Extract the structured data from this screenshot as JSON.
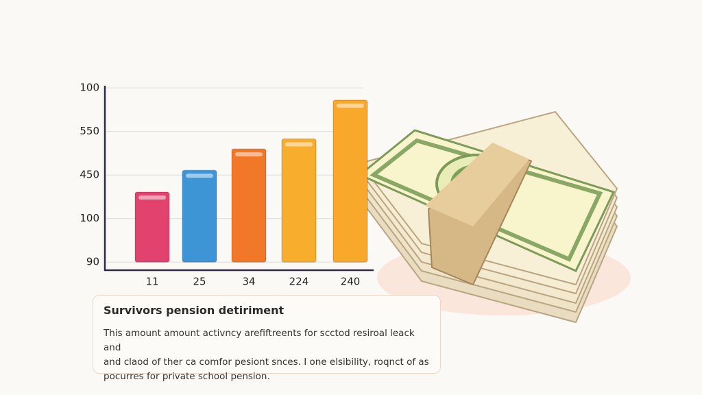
{
  "chart_data": {
    "type": "bar",
    "categories": [
      "11",
      "25",
      "34",
      "224",
      "240"
    ],
    "values": [
      1.61,
      2.11,
      2.6,
      2.83,
      3.72
    ],
    "colors": [
      "#e2436e",
      "#3d95d6",
      "#f07828",
      "#f8ad2c",
      "#f8a82a"
    ],
    "ylim": [
      -0.17,
      4.05
    ],
    "yticks": [
      {
        "value": 0,
        "label": "90"
      },
      {
        "value": 1,
        "label": "100"
      },
      {
        "value": 2,
        "label": "450"
      },
      {
        "value": 3,
        "label": "550"
      },
      {
        "value": 4,
        "label": "100"
      }
    ],
    "grid": true
  },
  "note": {
    "title": "Survivors pension detiriment",
    "lines": [
      "This amount amount activncy arefiftreents for scctod resiroal leack and",
      "and claod of ther ca comfor pesiont snces. I one elsibility, roqnct of as",
      "pocurres for private school pension."
    ]
  }
}
